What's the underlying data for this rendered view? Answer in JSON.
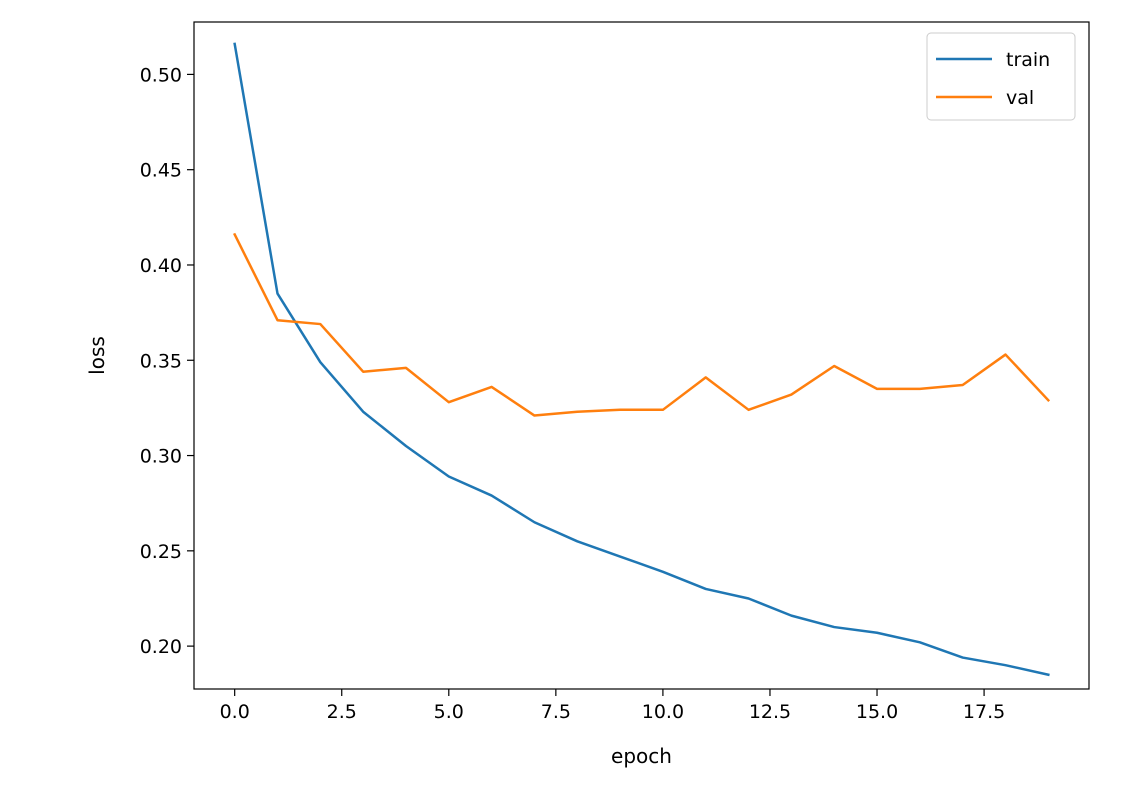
{
  "chart_data": {
    "type": "line",
    "title": "",
    "xlabel": "epoch",
    "ylabel": "loss",
    "xlim": [
      -0.95,
      19.95
    ],
    "ylim": [
      0.1775,
      0.5275
    ],
    "xticks": [
      0.0,
      2.5,
      5.0,
      7.5,
      10.0,
      12.5,
      15.0,
      17.5
    ],
    "xtick_labels": [
      "0.0",
      "2.5",
      "5.0",
      "7.5",
      "10.0",
      "12.5",
      "15.0",
      "17.5"
    ],
    "yticks": [
      0.2,
      0.25,
      0.3,
      0.35,
      0.4,
      0.45,
      0.5
    ],
    "ytick_labels": [
      "0.20",
      "0.25",
      "0.30",
      "0.35",
      "0.40",
      "0.45",
      "0.50"
    ],
    "grid": false,
    "legend_position": "top-right",
    "x": [
      0,
      1,
      2,
      3,
      4,
      5,
      6,
      7,
      8,
      9,
      10,
      11,
      12,
      13,
      14,
      15,
      16,
      17,
      18,
      19
    ],
    "series": [
      {
        "name": "train",
        "color": "#1f77b4",
        "values": [
          0.516,
          0.385,
          0.349,
          0.323,
          0.305,
          0.289,
          0.279,
          0.265,
          0.255,
          0.247,
          0.239,
          0.23,
          0.225,
          0.216,
          0.21,
          0.207,
          0.202,
          0.194,
          0.19,
          0.185
        ]
      },
      {
        "name": "val",
        "color": "#ff7f0e",
        "values": [
          0.416,
          0.371,
          0.369,
          0.344,
          0.346,
          0.328,
          0.336,
          0.321,
          0.323,
          0.324,
          0.324,
          0.341,
          0.324,
          0.332,
          0.347,
          0.335,
          0.335,
          0.337,
          0.353,
          0.329
        ]
      }
    ]
  }
}
